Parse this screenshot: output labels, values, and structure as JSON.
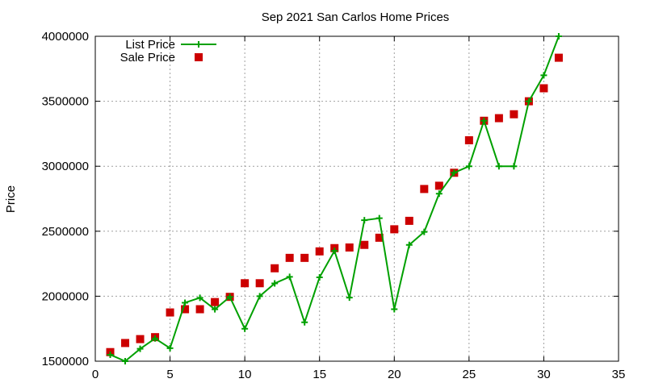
{
  "chart_data": {
    "type": "line",
    "title": "Sep 2021 San Carlos Home Prices",
    "xlabel": "",
    "ylabel": "Price",
    "xlim": [
      0,
      35
    ],
    "ylim": [
      1500000,
      4000000
    ],
    "x_ticks": [
      0,
      5,
      10,
      15,
      20,
      25,
      30,
      35
    ],
    "y_ticks": [
      1500000,
      2000000,
      2500000,
      3000000,
      3500000,
      4000000
    ],
    "grid": true,
    "legend_position": "top-left",
    "x": [
      1,
      2,
      3,
      4,
      5,
      6,
      7,
      8,
      9,
      10,
      11,
      12,
      13,
      14,
      15,
      16,
      17,
      18,
      19,
      20,
      21,
      22,
      23,
      24,
      25,
      26,
      27,
      28,
      29,
      30,
      31
    ],
    "series": [
      {
        "name": "List Price",
        "style": "linespoints",
        "color": "#00a000",
        "values": [
          1550000,
          1500000,
          1595000,
          1675000,
          1600000,
          1950000,
          1988000,
          1899000,
          1995000,
          1750000,
          2000000,
          2099000,
          2149000,
          1799000,
          2145000,
          2349000,
          1989000,
          2585000,
          2600000,
          1900000,
          2395000,
          2495000,
          2789000,
          2950000,
          3000000,
          3350000,
          3000000,
          3000000,
          3500000,
          3700000,
          4000000
        ]
      },
      {
        "name": "Sale Price",
        "style": "points",
        "color": "#cc0000",
        "values": [
          1570000,
          1640000,
          1670000,
          1685000,
          1875000,
          1900000,
          1900000,
          1955000,
          1995000,
          2100000,
          2100000,
          2215000,
          2295000,
          2295000,
          2345000,
          2370000,
          2375000,
          2395000,
          2450000,
          2515000,
          2580000,
          2825000,
          2850000,
          2950000,
          3200000,
          3350000,
          3370000,
          3400000,
          3500000,
          3600000,
          3835000
        ]
      }
    ]
  }
}
